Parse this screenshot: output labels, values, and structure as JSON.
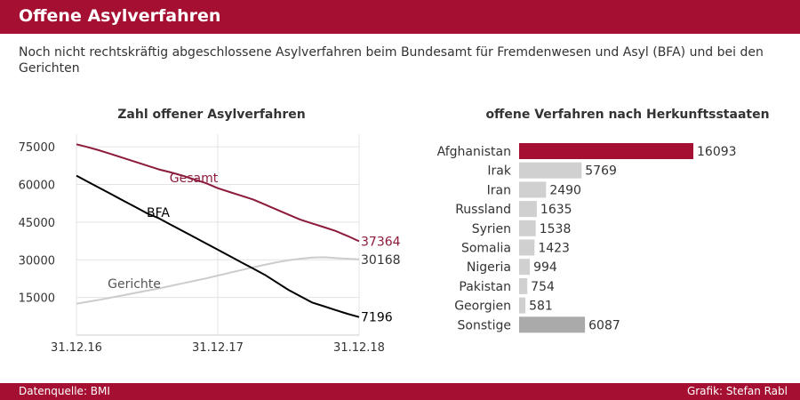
{
  "header": {
    "title": "Offene Asylverfahren"
  },
  "subtitle": "Noch nicht rechtskräftig abgeschlossene Asylverfahren beim Bundesamt für Fremdenwesen und Asyl (BFA) und bei den Gerichten",
  "footer": {
    "source": "Datenquelle: BMI",
    "credit": "Grafik: Stefan Rabl"
  },
  "colors": {
    "brand": "#a51032",
    "gesamt": "#8c1a3a",
    "bfa": "#000000",
    "gerichte": "#cccccc",
    "bar": "#d0d0d0",
    "bar_other": "#aaaaaa"
  },
  "chart_data": [
    {
      "type": "line",
      "title": "Zahl offener Asylverfahren",
      "x_ticks": [
        "31.12.16",
        "31.12.17",
        "31.12.18"
      ],
      "y_ticks": [
        15000,
        30000,
        45000,
        60000,
        75000
      ],
      "ylim": [
        0,
        80000
      ],
      "x": [
        "2016-12-31",
        "2017-01-31",
        "2017-02-28",
        "2017-03-31",
        "2017-04-30",
        "2017-05-31",
        "2017-06-30",
        "2017-07-31",
        "2017-08-31",
        "2017-09-30",
        "2017-10-31",
        "2017-11-30",
        "2017-12-31",
        "2018-01-31",
        "2018-02-28",
        "2018-03-31",
        "2018-04-30",
        "2018-05-31",
        "2018-06-30",
        "2018-07-31",
        "2018-08-31",
        "2018-09-30",
        "2018-10-31",
        "2018-11-30",
        "2018-12-31"
      ],
      "series": [
        {
          "name": "Gesamt",
          "end_label": "37364",
          "color": "#8c1a3a",
          "values": [
            76000,
            74800,
            73500,
            72000,
            70500,
            69000,
            67500,
            66000,
            64800,
            63500,
            62000,
            60500,
            58500,
            57000,
            55500,
            54000,
            52000,
            50000,
            48000,
            46000,
            44500,
            43000,
            41500,
            39500,
            37364
          ]
        },
        {
          "name": "BFA",
          "end_label": "7196",
          "color": "#000000",
          "values": [
            63500,
            61000,
            58500,
            56000,
            53500,
            51000,
            48500,
            46500,
            44000,
            41500,
            39000,
            36500,
            34000,
            31500,
            29000,
            26500,
            24000,
            21000,
            18000,
            15500,
            13000,
            11500,
            10000,
            8500,
            7196
          ]
        },
        {
          "name": "Gerichte",
          "end_label": "30168",
          "color": "#cccccc",
          "values": [
            12500,
            13300,
            14100,
            15000,
            15900,
            16800,
            17700,
            18600,
            19600,
            20600,
            21600,
            22600,
            23700,
            24800,
            25900,
            27000,
            28000,
            29000,
            29800,
            30400,
            30900,
            31000,
            30700,
            30400,
            30168
          ]
        }
      ]
    },
    {
      "type": "bar",
      "orientation": "horizontal",
      "title": "offene Verfahren nach Herkunftsstaaten",
      "categories": [
        "Afghanistan",
        "Irak",
        "Iran",
        "Russland",
        "Syrien",
        "Somalia",
        "Nigeria",
        "Pakistan",
        "Georgien",
        "Sonstige"
      ],
      "values": [
        16093,
        5769,
        2490,
        1635,
        1538,
        1423,
        994,
        754,
        581,
        6087
      ],
      "colors": [
        "#a51032",
        "#d0d0d0",
        "#d0d0d0",
        "#d0d0d0",
        "#d0d0d0",
        "#d0d0d0",
        "#d0d0d0",
        "#d0d0d0",
        "#d0d0d0",
        "#aaaaaa"
      ]
    }
  ]
}
